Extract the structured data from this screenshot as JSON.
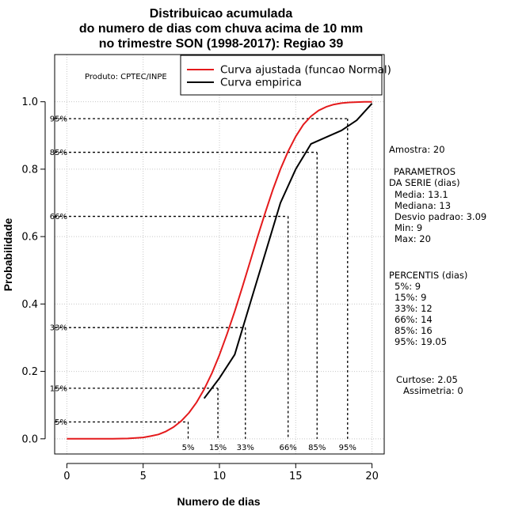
{
  "chart_data": {
    "type": "line",
    "title_lines": [
      "Distribuicao acumulada",
      "do numero de dias com chuva acima de 10 mm",
      "no trimestre SON (1998-2017): Regiao 39"
    ],
    "xlabel": "Numero de dias",
    "ylabel": "Probabilidade",
    "xlim": [
      -0.8,
      20.8
    ],
    "ylim": [
      -0.045,
      1.14
    ],
    "x_ticks": [
      0,
      5,
      10,
      15,
      20
    ],
    "y_ticks": [
      0.0,
      0.2,
      0.4,
      0.6,
      0.8,
      1.0
    ],
    "x_tick_labels": [
      "0",
      "5",
      "10",
      "15",
      "20"
    ],
    "y_tick_labels": [
      "0.0",
      "0.2",
      "0.4",
      "0.6",
      "0.8",
      "1.0"
    ],
    "grid": true,
    "product_label": "Produto: CPTEC/INPE",
    "legend": {
      "placement": "top-right",
      "entries": [
        {
          "label": "Curva ajustada (funcao Normal)",
          "color": "#e41a1c"
        },
        {
          "label": "Curva empirica",
          "color": "#000000"
        }
      ]
    },
    "series": [
      {
        "name": "Curva ajustada (funcao Normal)",
        "color": "#e41a1c",
        "x": [
          0,
          1,
          2,
          3,
          4,
          5,
          5.5,
          6,
          6.5,
          7,
          7.5,
          8,
          8.5,
          9,
          9.5,
          10,
          10.5,
          11,
          11.5,
          12,
          12.5,
          13,
          13.5,
          14,
          14.5,
          15,
          15.5,
          16,
          16.5,
          17,
          17.5,
          18,
          18.5,
          19,
          19.5,
          20
        ],
        "y": [
          0.0,
          0.0,
          0.0,
          0.0,
          0.001,
          0.004,
          0.008,
          0.013,
          0.022,
          0.035,
          0.053,
          0.077,
          0.108,
          0.147,
          0.194,
          0.249,
          0.311,
          0.378,
          0.45,
          0.524,
          0.599,
          0.671,
          0.739,
          0.8,
          0.853,
          0.897,
          0.932,
          0.957,
          0.974,
          0.985,
          0.992,
          0.996,
          0.998,
          0.999,
          1.0,
          1.0
        ]
      },
      {
        "name": "Curva empirica",
        "color": "#000000",
        "x": [
          9,
          10,
          11,
          12,
          13,
          14,
          15,
          16,
          17,
          18,
          19,
          20
        ],
        "y": [
          0.12,
          0.18,
          0.25,
          0.4,
          0.55,
          0.7,
          0.8,
          0.875,
          0.895,
          0.915,
          0.945,
          0.995
        ]
      }
    ],
    "percentile_lines": [
      {
        "label": "5%",
        "prob": 0.05,
        "x": 7.95
      },
      {
        "label": "15%",
        "prob": 0.15,
        "x": 9.9
      },
      {
        "label": "33%",
        "prob": 0.33,
        "x": 11.7
      },
      {
        "label": "66%",
        "prob": 0.66,
        "x": 14.5
      },
      {
        "label": "85%",
        "prob": 0.85,
        "x": 16.4
      },
      {
        "label": "95%",
        "prob": 0.95,
        "x": 18.4
      }
    ],
    "side_panel": {
      "sample": "Amostra: 20",
      "params_title_1": "PARAMETROS",
      "params_title_2": "DA SERIE (dias)",
      "params": [
        "Media: 13.1",
        "Mediana: 13",
        "Desvio padrao: 3.09",
        "Min: 9",
        "Max: 20"
      ],
      "percentis_title": "PERCENTIS (dias)",
      "percentis": [
        "5%: 9",
        "15%: 9",
        "33%: 12",
        "66%: 14",
        "85%: 16",
        "95%: 19.05"
      ],
      "curtose": "Curtose: 2.05",
      "assimetria": "Assimetria: 0"
    }
  }
}
